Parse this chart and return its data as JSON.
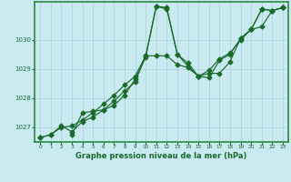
{
  "title": "Graphe pression niveau de la mer (hPa)",
  "background_color": "#c8eaf0",
  "grid_color": "#aed4dc",
  "line_color": "#1a6b2a",
  "border_color": "#2d8a3e",
  "xlim": [
    -0.5,
    23.5
  ],
  "ylim": [
    1026.5,
    1031.3
  ],
  "yticks": [
    1027,
    1028,
    1029,
    1030
  ],
  "xticks": [
    0,
    1,
    2,
    3,
    4,
    5,
    6,
    7,
    8,
    9,
    10,
    11,
    12,
    13,
    14,
    15,
    16,
    17,
    18,
    19,
    20,
    21,
    22,
    23
  ],
  "series1_x": [
    0,
    1,
    2,
    3,
    4,
    5,
    6,
    7,
    8,
    9,
    10,
    11,
    12,
    13,
    14,
    15,
    16,
    17,
    18,
    19,
    20,
    21,
    22,
    23
  ],
  "series1_y": [
    1026.65,
    1026.75,
    1027.0,
    1027.05,
    1027.25,
    1027.5,
    1027.8,
    1028.1,
    1028.45,
    1028.75,
    1029.45,
    1029.45,
    1029.45,
    1029.15,
    1029.05,
    1028.75,
    1028.95,
    1029.35,
    1029.55,
    1030.0,
    1030.35,
    1031.05,
    1031.0,
    1031.1
  ],
  "series2_x": [
    0,
    1,
    2,
    3,
    4,
    5,
    6,
    7,
    8,
    9,
    10,
    11,
    12,
    13,
    14,
    15,
    16,
    17,
    18,
    19,
    20,
    21,
    22,
    23
  ],
  "series2_y": [
    1026.65,
    1026.75,
    1027.05,
    1026.85,
    1027.2,
    1027.35,
    1027.6,
    1027.9,
    1028.25,
    1028.55,
    1029.45,
    1031.15,
    1031.1,
    1029.5,
    1029.2,
    1028.75,
    1028.7,
    1029.3,
    1029.5,
    1030.05,
    1030.35,
    1031.05,
    1031.0,
    1031.1
  ],
  "series3_x": [
    3,
    4,
    5,
    6,
    7,
    8,
    9,
    10,
    11,
    12,
    13,
    14,
    15,
    16,
    17,
    18,
    19,
    20,
    21,
    22,
    23
  ],
  "series3_y": [
    1026.75,
    1027.5,
    1027.55,
    1027.6,
    1027.75,
    1028.1,
    1028.65,
    1029.4,
    1031.15,
    1031.05,
    1029.5,
    1029.1,
    1028.75,
    1028.85,
    1028.85,
    1029.25,
    1030.05,
    1030.35,
    1030.45,
    1031.0,
    1031.1
  ]
}
